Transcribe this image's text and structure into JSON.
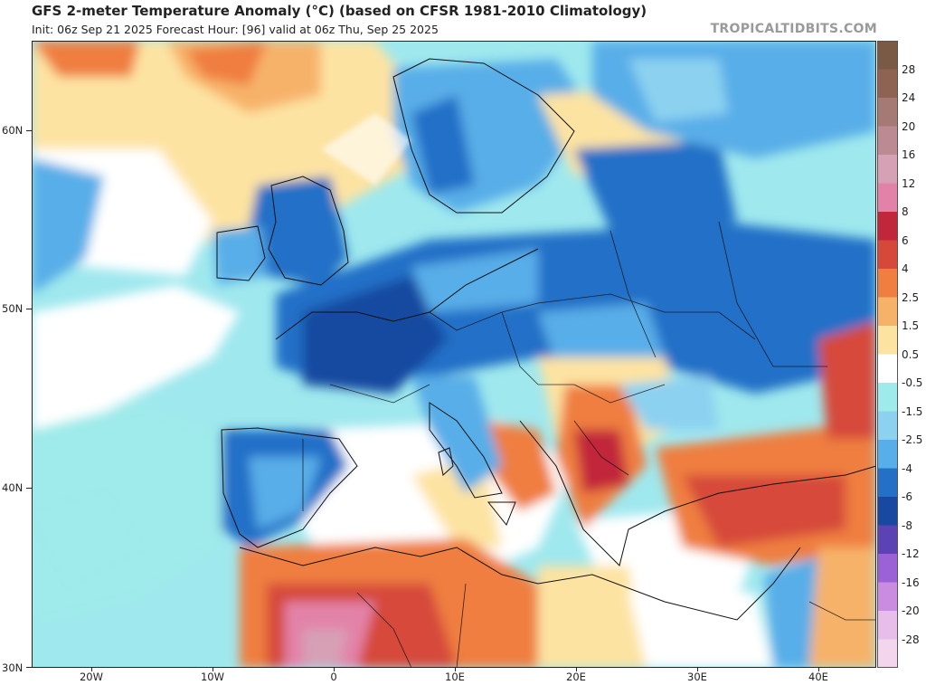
{
  "header": {
    "title": "GFS 2-meter Temperature Anomaly (°C) (based on CFSR 1981-2010 Climatology)",
    "subtitle": "Init: 06z Sep 21 2025   Forecast Hour: [96]   valid at 06z Thu, Sep 25 2025",
    "brand": "TROPICALTIDBITS.COM"
  },
  "axes": {
    "lat_labels": [
      "60N",
      "50N",
      "40N",
      "30N"
    ],
    "lon_labels": [
      "20W",
      "10W",
      "0",
      "10E",
      "20E",
      "30E",
      "40E"
    ]
  },
  "colorbar": {
    "labels": [
      "28",
      "24",
      "20",
      "16",
      "12",
      "8",
      "6",
      "4",
      "2.5",
      "1.5",
      "0.5",
      "-0.5",
      "-1.5",
      "-2.5",
      "-4",
      "-6",
      "-8",
      "-12",
      "-16",
      "-20",
      "-28"
    ],
    "colors": [
      "#7b5a45",
      "#8f6352",
      "#a57a74",
      "#bb8a92",
      "#d6a0b5",
      "#e382a8",
      "#c1273a",
      "#d6483a",
      "#ef7e40",
      "#f7b26a",
      "#fde3a2",
      "#ffffff",
      "#9feaea",
      "#8cd1f0",
      "#58aee8",
      "#2470c7",
      "#1948a0",
      "#5b43b4",
      "#9a62d6",
      "#c98ce1",
      "#e7bde9",
      "#f3d6ee"
    ]
  },
  "map": {
    "background_color": "#9fe8ee",
    "coastline_color": "#111111"
  }
}
